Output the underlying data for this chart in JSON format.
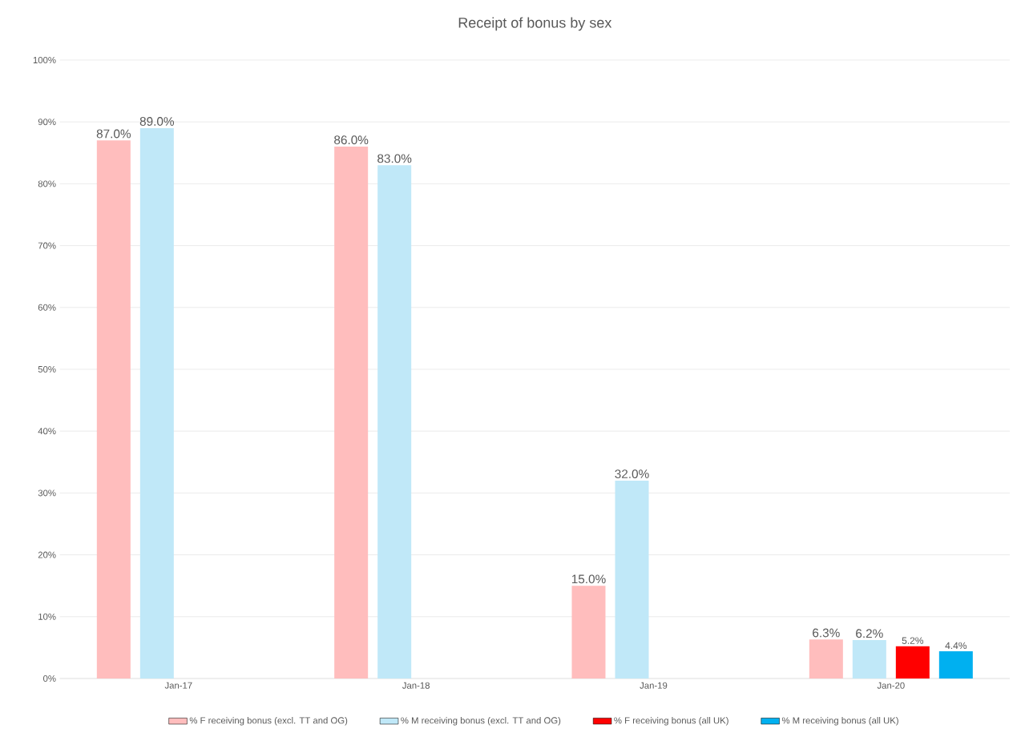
{
  "chart_data": {
    "type": "bar",
    "title": "Receipt of bonus by sex",
    "categories": [
      "Jan-17",
      "Jan-18",
      "Jan-19",
      "Jan-20"
    ],
    "series": [
      {
        "name": "% F receiving bonus (excl. TT and OG)",
        "color": "#ffbdbd",
        "values": [
          87,
          86,
          15,
          6.3
        ],
        "value_labels": [
          "87.0%",
          "86.0%",
          "15.0%",
          "6.3%"
        ]
      },
      {
        "name": "% M receiving bonus (excl. TT and OG)",
        "color": "#c0e8f8",
        "values": [
          89,
          83,
          32,
          6.2
        ],
        "value_labels": [
          "89.0%",
          "83.0%",
          "32.0%",
          "6.2%"
        ]
      },
      {
        "name": "% F receiving bonus (all UK)",
        "color": "#ff0000",
        "values": [
          null,
          null,
          null,
          5.2
        ],
        "value_labels": [
          null,
          null,
          null,
          "5.2%"
        ]
      },
      {
        "name": "% M receiving bonus (all UK)",
        "color": "#00b0f0",
        "values": [
          null,
          null,
          null,
          4.4
        ],
        "value_labels": [
          null,
          null,
          null,
          "4.4%"
        ]
      }
    ],
    "ylim": [
      0,
      100
    ],
    "yticks": [
      {
        "value": 0,
        "label": "0%"
      },
      {
        "value": 10,
        "label": "10%"
      },
      {
        "value": 20,
        "label": "20%"
      },
      {
        "value": 30,
        "label": "30%"
      },
      {
        "value": 40,
        "label": "40%"
      },
      {
        "value": 50,
        "label": "50%"
      },
      {
        "value": 60,
        "label": "60%"
      },
      {
        "value": 70,
        "label": "70%"
      },
      {
        "value": 80,
        "label": "80%"
      },
      {
        "value": 90,
        "label": "90%"
      },
      {
        "value": 100,
        "label": "100%"
      }
    ],
    "grid": "y",
    "legend": "bottom"
  }
}
